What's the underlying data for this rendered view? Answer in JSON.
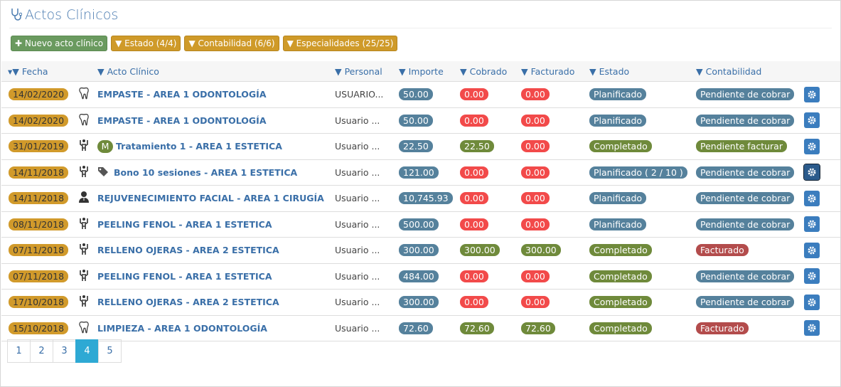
{
  "header": {
    "title": "Actos Clínicos"
  },
  "toolbar": {
    "buttons": [
      "Nuevo acto clínico",
      "Estado (4/4)",
      "Contabilidad (6/6)",
      "Especialidades (25/25)"
    ]
  },
  "table": {
    "columns": [
      "Fecha",
      "Acto Clínico",
      "Personal",
      "Importe",
      "Cobrado",
      "Facturado",
      "Estado",
      "Contabilidad"
    ],
    "rows": [
      {
        "date": "14/02/2020",
        "act": "EMPASTE - AREA 1 ODONTOLOGÍA",
        "personal": "USUARIO...",
        "importe": "50.00",
        "cobrado": "0.00",
        "facturado": "0.00",
        "estado": "Planificado",
        "contabilidad": "Pendiente de cobrar"
      },
      {
        "date": "14/02/2020",
        "act": "EMPASTE - AREA 1 ODONTOLOGÍA",
        "personal": "Usuario ...",
        "importe": "50.00",
        "cobrado": "0.00",
        "facturado": "0.00",
        "estado": "Planificado",
        "contabilidad": "Pendiente de cobrar"
      },
      {
        "date": "31/01/2019",
        "badge": "M",
        "act": "Tratamiento 1 - AREA 1 ESTETICA",
        "personal": "Usuario ...",
        "importe": "22.50",
        "cobrado": "22.50",
        "facturado": "0.00",
        "estado": "Completado",
        "contabilidad": "Pendiente facturar"
      },
      {
        "date": "14/11/2018",
        "act": "Bono 10 sesiones - AREA 1 ESTETICA",
        "personal": "Usuario ...",
        "importe": "121.00",
        "cobrado": "0.00",
        "facturado": "0.00",
        "estado": "Planificado ( 2 / 10 )",
        "contabilidad": "Pendiente de cobrar"
      },
      {
        "date": "14/11/2018",
        "act": "REJUVENECIMIENTO FACIAL - AREA 1 CIRUGÍA",
        "personal": "Usuario ...",
        "importe": "10,745.93",
        "cobrado": "0.00",
        "facturado": "0.00",
        "estado": "Planificado",
        "contabilidad": "Pendiente de cobrar"
      },
      {
        "date": "08/11/2018",
        "act": "PEELING FENOL - AREA 1 ESTETICA",
        "personal": "Usuario ...",
        "importe": "500.00",
        "cobrado": "0.00",
        "facturado": "0.00",
        "estado": "Planificado",
        "contabilidad": "Pendiente de cobrar"
      },
      {
        "date": "07/11/2018",
        "act": "RELLENO OJERAS - AREA 2 ESTETICA",
        "personal": "Usuario ...",
        "importe": "300.00",
        "cobrado": "300.00",
        "facturado": "300.00",
        "estado": "Completado",
        "contabilidad": "Facturado"
      },
      {
        "date": "07/11/2018",
        "act": "PEELING FENOL - AREA 1 ESTETICA",
        "personal": "Usuario ...",
        "importe": "484.00",
        "cobrado": "0.00",
        "facturado": "0.00",
        "estado": "Completado",
        "contabilidad": "Pendiente de cobrar"
      },
      {
        "date": "17/10/2018",
        "act": "RELLENO OJERAS - AREA 2 ESTETICA",
        "personal": "Usuario ...",
        "importe": "300.00",
        "cobrado": "0.00",
        "facturado": "0.00",
        "estado": "Completado",
        "contabilidad": "Pendiente de cobrar"
      },
      {
        "date": "15/10/2018",
        "act": "LIMPIEZA - AREA 1 ODONTOLOGÍA",
        "personal": "Usuario ...",
        "importe": "72.60",
        "cobrado": "72.60",
        "facturado": "72.60",
        "estado": "Completado",
        "contabilidad": "Facturado"
      }
    ]
  },
  "pagination": {
    "pages": [
      1,
      2,
      3,
      4,
      5
    ],
    "active": 3
  }
}
